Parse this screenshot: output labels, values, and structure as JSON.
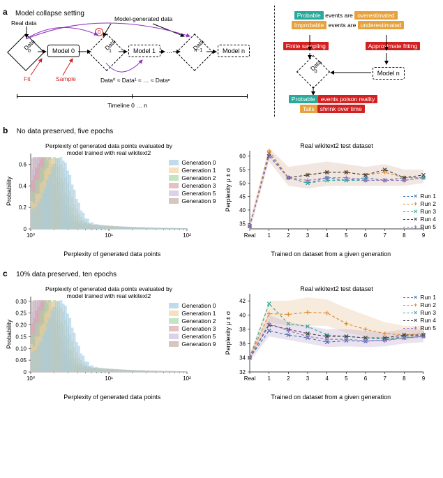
{
  "panel_a": {
    "label": "a",
    "title": "Model collapse setting",
    "left": {
      "real_data_label": "Real data",
      "model_gen_label": "Model-generated data",
      "data0": "Data",
      "data0_sup": "0",
      "model0": "Model 0",
      "data1": "Data",
      "data1_sup": "1",
      "model1": "Model 1",
      "ellipsis": "…",
      "datan1": "Data",
      "datan1_sup": "n−1",
      "modeln": "Model n",
      "fit": "Fit",
      "sample": "Sample",
      "approx": "Data⁰ ≈ Data¹ ≈ … ≈ Dataⁿ",
      "timeline_label": "Timeline 0 … n",
      "circ0": "0"
    },
    "right": {
      "line1_a": "Probable",
      "line1_b": " events are ",
      "line1_c": "overestimated",
      "line2_a": "Improbable",
      "line2_b": " events are ",
      "line2_c": "underestimated",
      "finite": "Finite sampling",
      "approx_fit": "Approximate fitting",
      "data_sup": "0",
      "data": "Data",
      "modeln": "Model n",
      "line3_a": "Probable",
      "line3_b": " events poison reality",
      "line4_a": "Tails",
      "line4_b": " shrink over time"
    }
  },
  "panel_b": {
    "label": "b",
    "title": "No data preserved, five epochs",
    "hist": {
      "title": "Perplexity of generated data points evaluated by\nmodel trained with real wikitext2",
      "xlabel": "Perplexity of generated data points",
      "ylabel": "Probability",
      "xticks": [
        "10⁰",
        "10¹",
        "10²"
      ],
      "yticks": [
        "0",
        "0.2",
        "0.4",
        "0.6"
      ],
      "ylim": [
        0,
        0.7
      ],
      "legend": [
        {
          "label": "Generation 0",
          "color": "#9ecae1"
        },
        {
          "label": "Generation 1",
          "color": "#f2d09b"
        },
        {
          "label": "Generation 2",
          "color": "#a5d5a5"
        },
        {
          "label": "Generation 3",
          "color": "#d8a0a0"
        },
        {
          "label": "Generation 5",
          "color": "#c8b8dc"
        },
        {
          "label": "Generation 9",
          "color": "#bfa8a0"
        }
      ]
    },
    "perp": {
      "title": "Real wikitext2 test dataset",
      "xlabel": "Trained on dataset from a given generation",
      "ylabel": "Perplexity μ ± σ",
      "xticks": [
        "Real",
        "1",
        "2",
        "3",
        "4",
        "5",
        "6",
        "7",
        "8",
        "9"
      ],
      "yticks": [
        "35",
        "40",
        "45",
        "50",
        "55",
        "60"
      ],
      "ylim": [
        33,
        62
      ],
      "runs": [
        {
          "label": "Run 1",
          "color": "#3a76b0",
          "marker": "x",
          "y": [
            34,
            61,
            52,
            50,
            52,
            51,
            52,
            51,
            52,
            52
          ]
        },
        {
          "label": "Run 2",
          "color": "#e08a2c",
          "marker": "plus",
          "y": [
            34,
            62,
            52,
            53,
            54,
            54,
            53,
            54,
            52,
            52
          ]
        },
        {
          "label": "Run 3",
          "color": "#2aa89a",
          "marker": "x",
          "y": [
            34,
            60,
            52,
            50,
            51,
            51,
            51,
            51,
            51,
            52
          ]
        },
        {
          "label": "Run 4",
          "color": "#404040",
          "marker": "x",
          "y": [
            34,
            60,
            52,
            53,
            54,
            54,
            53,
            55,
            52,
            53
          ]
        },
        {
          "label": "Run 5",
          "color": "#9a6fc4",
          "marker": "plus",
          "y": [
            34,
            60,
            52,
            51,
            52,
            52,
            51,
            51,
            51,
            52
          ]
        }
      ],
      "band": {
        "color": "#d9b8a8",
        "opacity": 0.35,
        "upper": [
          36,
          63,
          56,
          57,
          58,
          57,
          56,
          57,
          55,
          55
        ],
        "lower": [
          32,
          58,
          49,
          48,
          49,
          49,
          49,
          49,
          49,
          50
        ]
      }
    }
  },
  "panel_c": {
    "label": "c",
    "title": "10% data preserved, ten epochs",
    "hist": {
      "title": "Perplexity of generated data points evaluated by\nmodel trained with real wikitext2",
      "xlabel": "Perplexity of generated data points",
      "ylabel": "Probability",
      "xticks": [
        "10⁰",
        "10¹",
        "10²"
      ],
      "yticks": [
        "0",
        "0.05",
        "0.10",
        "0.15",
        "0.20",
        "0.25",
        "0.30"
      ],
      "ylim": [
        0,
        0.32
      ],
      "legend": [
        {
          "label": "Generation 0",
          "color": "#9ecae1"
        },
        {
          "label": "Generation 1",
          "color": "#f2d09b"
        },
        {
          "label": "Generation 2",
          "color": "#a5d5a5"
        },
        {
          "label": "Generation 3",
          "color": "#d8a0a0"
        },
        {
          "label": "Generation 5",
          "color": "#c8b8dc"
        },
        {
          "label": "Generation 9",
          "color": "#bfa8a0"
        }
      ]
    },
    "perp": {
      "title": "Real wikitext2 test dataset",
      "xlabel": "Trained on dataset from a given generation",
      "ylabel": "Perplexity μ ± σ",
      "xticks": [
        "Real",
        "1",
        "2",
        "3",
        "4",
        "5",
        "6",
        "7",
        "8",
        "9"
      ],
      "yticks": [
        "32",
        "34",
        "36",
        "38",
        "40",
        "42"
      ],
      "ylim": [
        32,
        43
      ],
      "runs": [
        {
          "label": "Run 1",
          "color": "#3a76b0",
          "marker": "x",
          "y": [
            34,
            37.8,
            37.2,
            36.8,
            36.2,
            36.4,
            36.3,
            36.5,
            36.8,
            37
          ]
        },
        {
          "label": "Run 2",
          "color": "#e08a2c",
          "marker": "plus",
          "y": [
            34,
            40.2,
            40.1,
            40.4,
            40.3,
            38.8,
            38,
            37.4,
            37.2,
            37.4
          ]
        },
        {
          "label": "Run 3",
          "color": "#2aa89a",
          "marker": "x",
          "y": [
            34,
            41.6,
            38.8,
            38.4,
            37.2,
            37.0,
            36.8,
            36.6,
            37,
            37.2
          ]
        },
        {
          "label": "Run 4",
          "color": "#404040",
          "marker": "x",
          "y": [
            34,
            38.6,
            38.0,
            37.4,
            37.0,
            37.0,
            36.8,
            36.8,
            37.2,
            37.2
          ]
        },
        {
          "label": "Run 5",
          "color": "#9a6fc4",
          "marker": "plus",
          "y": [
            34,
            38.8,
            37.8,
            37.0,
            36.6,
            36.6,
            36.4,
            36.4,
            36.8,
            37.0
          ]
        }
      ],
      "bands": [
        {
          "color": "#e6c79a",
          "opacity": 0.35,
          "upper": [
            34.5,
            42,
            42,
            42.5,
            42.2,
            41,
            40,
            39,
            38.5,
            38.5
          ],
          "lower": [
            33.5,
            39,
            38.5,
            38.5,
            38.5,
            37.5,
            37,
            36.5,
            36.5,
            36.8
          ]
        },
        {
          "color": "#b9a3c9",
          "opacity": 0.3,
          "upper": [
            34.5,
            40,
            39,
            38.5,
            38,
            38,
            37.8,
            37.6,
            38,
            38
          ],
          "lower": [
            33.5,
            37,
            36.5,
            36,
            35.5,
            35.6,
            35.5,
            35.6,
            36,
            36.2
          ]
        }
      ]
    }
  },
  "chart_dims": {
    "hist_w": 270,
    "hist_h": 150,
    "perp_w": 295,
    "perp_h": 150,
    "ml": 40,
    "mr": 6,
    "mt": 6,
    "mb": 24
  }
}
